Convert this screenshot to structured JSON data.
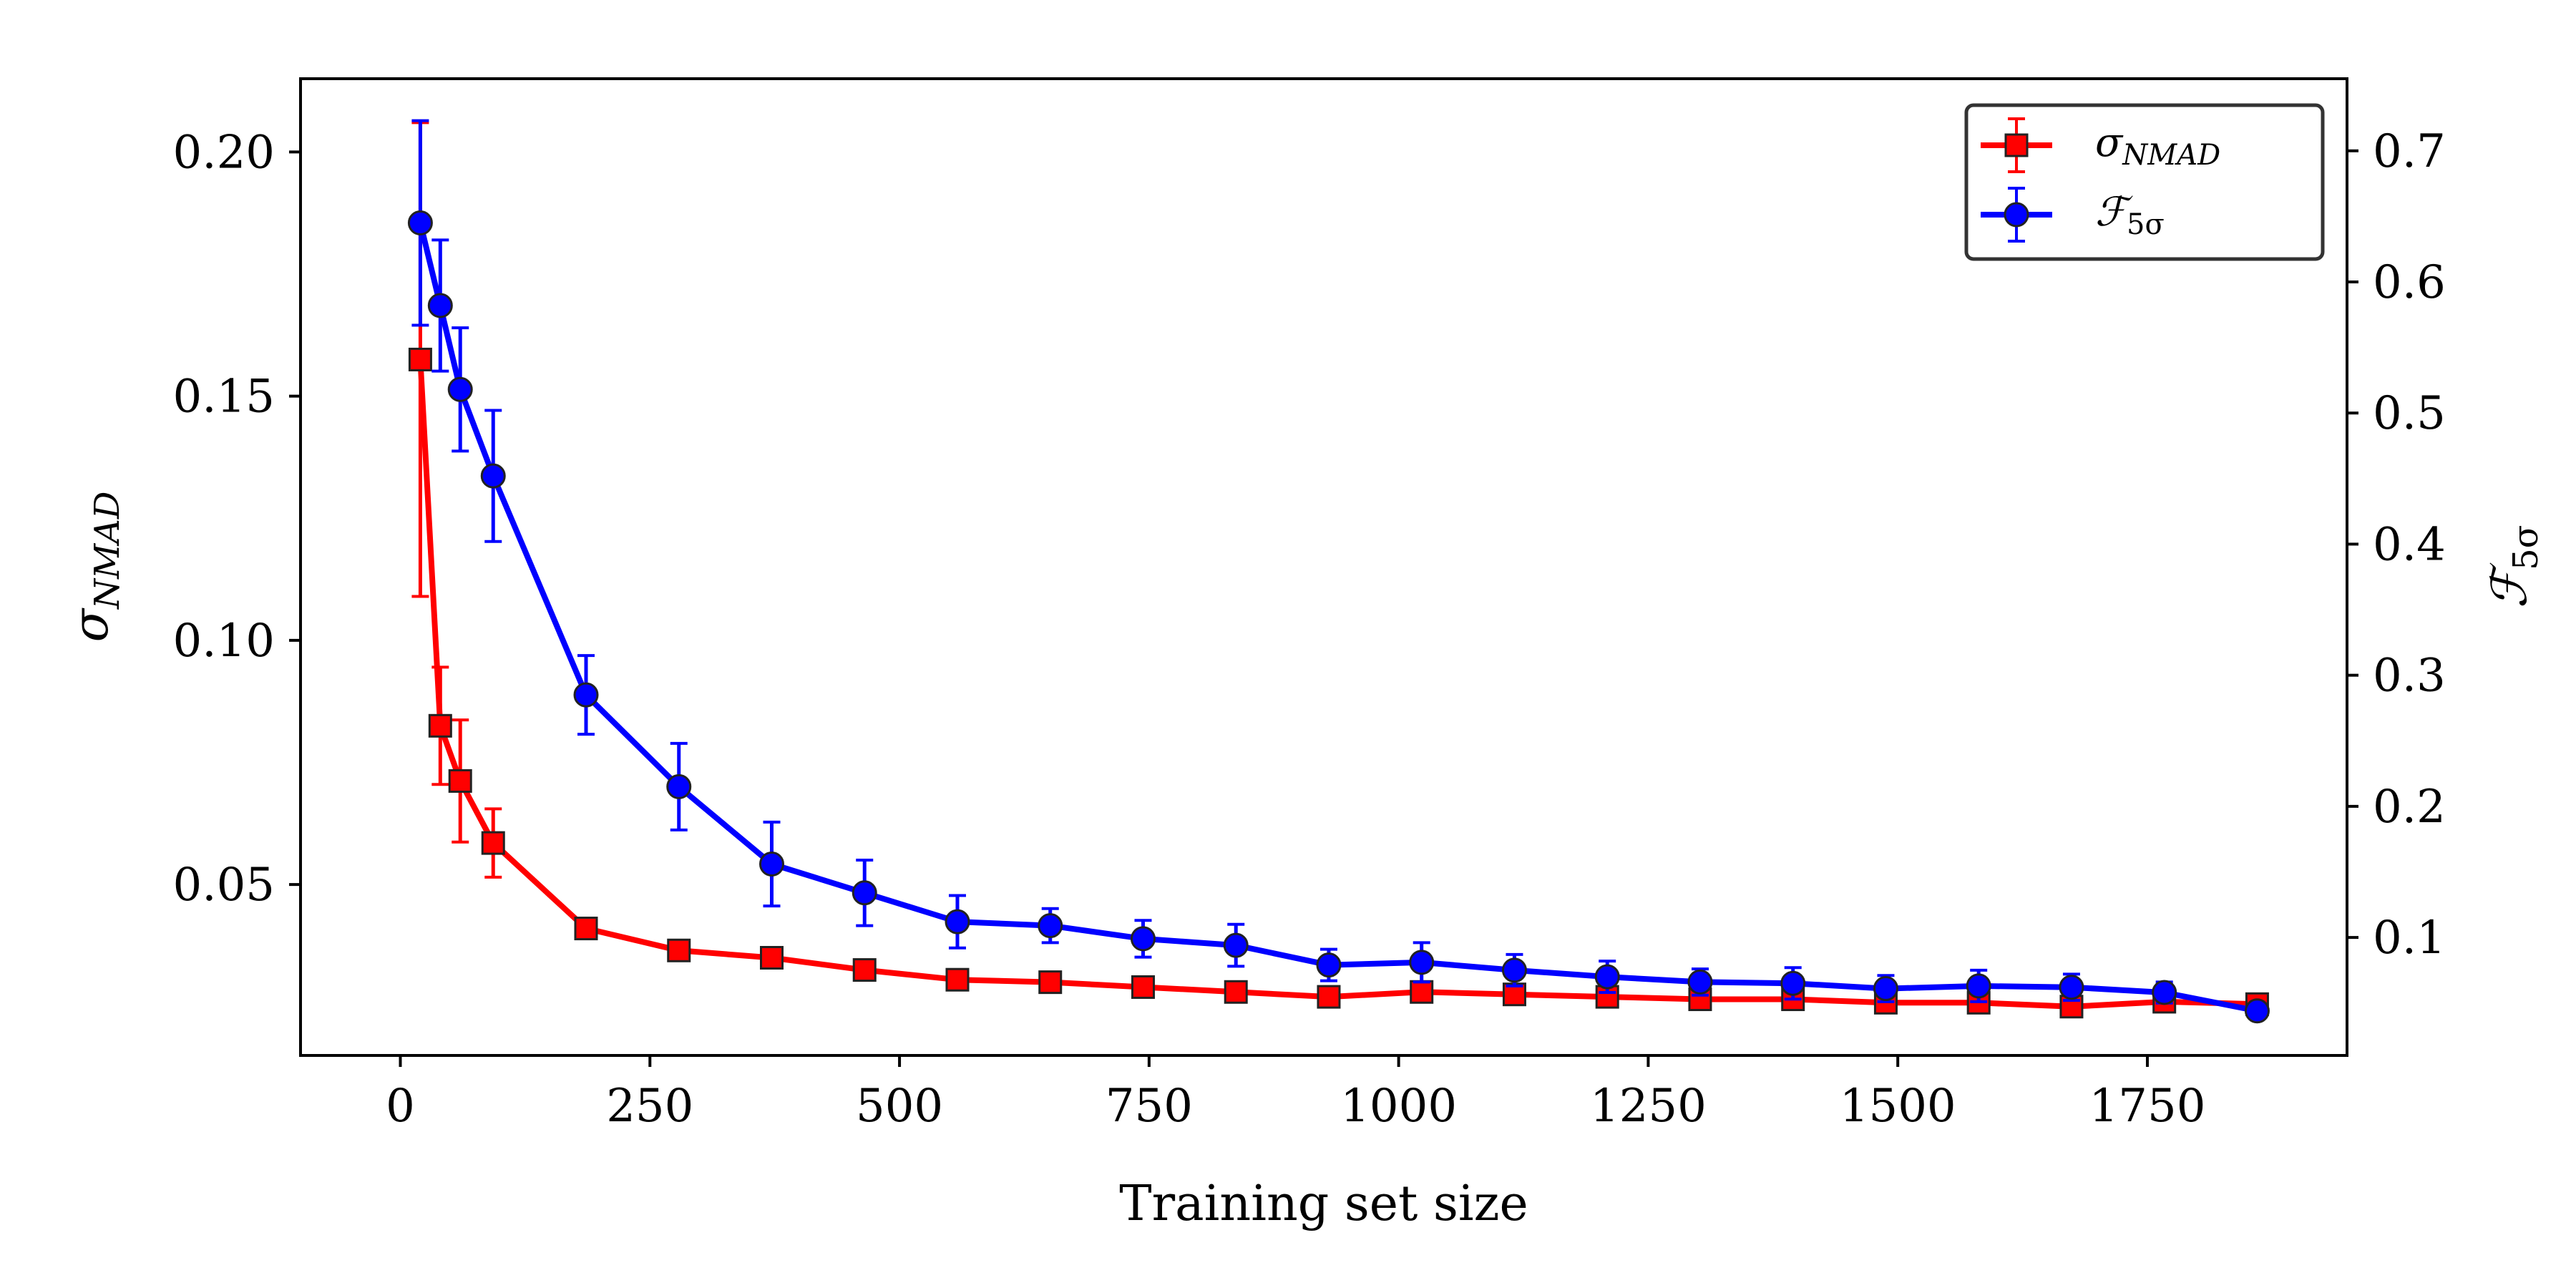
{
  "chart_data": {
    "type": "line",
    "xlabel": "Training set size",
    "ylabel_left": {
      "symbol": "σ",
      "subscript": "NMAD"
    },
    "ylabel_right": {
      "symbol": "ℱ",
      "subscript": "5σ"
    },
    "xlim": [
      -100,
      1950
    ],
    "ylim_left": [
      0.015,
      0.215
    ],
    "ylim_right": [
      0.01,
      0.755
    ],
    "x_ticks": [
      0,
      250,
      500,
      750,
      1000,
      1250,
      1500,
      1750
    ],
    "x_tick_labels": [
      "0",
      "250",
      "500",
      "750",
      "1000",
      "1250",
      "1500",
      "1750"
    ],
    "y_left_ticks": [
      0.05,
      0.1,
      0.15,
      0.2
    ],
    "y_left_tick_labels": [
      "0.05",
      "0.10",
      "0.15",
      "0.20"
    ],
    "y_right_ticks": [
      0.1,
      0.2,
      0.3,
      0.4,
      0.5,
      0.6,
      0.7
    ],
    "y_right_tick_labels": [
      "0.1",
      "0.2",
      "0.3",
      "0.4",
      "0.5",
      "0.6",
      "0.7"
    ],
    "grid": false,
    "legend": "top-right",
    "series": [
      {
        "axis": "left",
        "marker": "square",
        "color": "#ff0000",
        "legend_symbol": "σ",
        "legend_subscript": "NMAD",
        "x": [
          20,
          40,
          60,
          93,
          186,
          279,
          372,
          465,
          558,
          651,
          744,
          837,
          930,
          1023,
          1116,
          1209,
          1302,
          1395,
          1488,
          1581,
          1674,
          1767,
          1860
        ],
        "y": [
          0.1575,
          0.0825,
          0.0712,
          0.0585,
          0.041,
          0.0365,
          0.035,
          0.0325,
          0.0305,
          0.03,
          0.029,
          0.028,
          0.027,
          0.028,
          0.0275,
          0.027,
          0.0265,
          0.0265,
          0.0258,
          0.0258,
          0.025,
          0.026,
          0.0255
        ],
        "err": [
          0.0485,
          0.012,
          0.0125,
          0.007,
          0.0015,
          0.001,
          0.001,
          0.001,
          0.001,
          0.001,
          0.001,
          0.001,
          0.001,
          0.001,
          0.001,
          0.001,
          0.001,
          0.001,
          0.001,
          0.001,
          0.001,
          0.001,
          0.001
        ]
      },
      {
        "axis": "right",
        "marker": "circle",
        "color": "#0000ff",
        "legend_symbol": "ℱ",
        "legend_subscript": "5σ",
        "x": [
          20,
          40,
          60,
          93,
          186,
          279,
          372,
          465,
          558,
          651,
          744,
          837,
          930,
          1023,
          1116,
          1209,
          1302,
          1395,
          1488,
          1581,
          1674,
          1767,
          1860
        ],
        "y": [
          0.645,
          0.582,
          0.518,
          0.452,
          0.285,
          0.215,
          0.156,
          0.134,
          0.112,
          0.109,
          0.099,
          0.094,
          0.079,
          0.081,
          0.075,
          0.07,
          0.066,
          0.065,
          0.061,
          0.063,
          0.062,
          0.058,
          0.044
        ],
        "err": [
          0.078,
          0.05,
          0.047,
          0.05,
          0.03,
          0.033,
          0.032,
          0.025,
          0.02,
          0.013,
          0.014,
          0.016,
          0.012,
          0.015,
          0.012,
          0.012,
          0.01,
          0.012,
          0.01,
          0.012,
          0.01,
          0.008,
          0.004
        ]
      }
    ]
  }
}
